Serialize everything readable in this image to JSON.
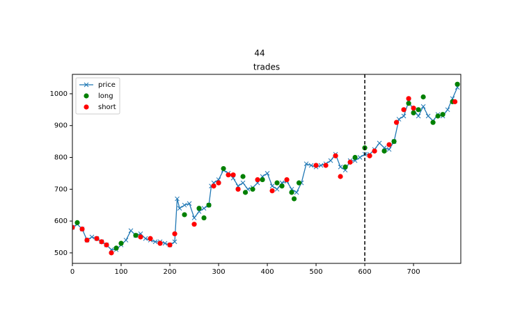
{
  "chart_data": {
    "type": "line",
    "suptitle": "44",
    "title": "trades",
    "xlim": [
      0,
      797
    ],
    "ylim": [
      467,
      1061
    ],
    "xticks": [
      0,
      100,
      200,
      300,
      400,
      500,
      600,
      700
    ],
    "yticks": [
      500,
      600,
      700,
      800,
      900,
      1000
    ],
    "vline": 600,
    "legend": "upper left",
    "series": [
      {
        "name": "price",
        "color": "#1f77b4",
        "marker": "x",
        "line": true,
        "x": [
          0,
          10,
          20,
          30,
          40,
          50,
          60,
          70,
          80,
          90,
          100,
          110,
          120,
          130,
          140,
          150,
          160,
          170,
          180,
          190,
          200,
          210,
          215,
          220,
          230,
          240,
          250,
          260,
          270,
          280,
          285,
          290,
          300,
          310,
          320,
          330,
          340,
          350,
          360,
          370,
          380,
          390,
          400,
          410,
          420,
          430,
          440,
          450,
          460,
          470,
          480,
          490,
          500,
          510,
          520,
          530,
          540,
          550,
          560,
          570,
          580,
          590,
          600,
          610,
          620,
          630,
          640,
          650,
          660,
          670,
          680,
          690,
          700,
          710,
          720,
          730,
          740,
          750,
          760,
          770,
          780,
          790
        ],
        "values": [
          580,
          590,
          575,
          540,
          550,
          545,
          535,
          525,
          510,
          510,
          525,
          540,
          570,
          555,
          560,
          545,
          540,
          535,
          535,
          530,
          525,
          535,
          670,
          640,
          650,
          655,
          610,
          630,
          640,
          650,
          710,
          720,
          730,
          760,
          750,
          735,
          710,
          720,
          700,
          705,
          720,
          740,
          750,
          710,
          700,
          720,
          725,
          700,
          690,
          720,
          780,
          775,
          770,
          775,
          780,
          790,
          810,
          770,
          760,
          790,
          790,
          800,
          810,
          810,
          825,
          845,
          830,
          825,
          850,
          920,
          930,
          975,
          950,
          930,
          960,
          930,
          915,
          935,
          930,
          950,
          985,
          1020
        ]
      },
      {
        "name": "long",
        "color": "#008000",
        "marker": "o",
        "line": false,
        "x": [
          10,
          90,
          100,
          130,
          230,
          260,
          270,
          280,
          310,
          350,
          355,
          370,
          390,
          420,
          430,
          450,
          455,
          465,
          560,
          580,
          600,
          640,
          660,
          690,
          700,
          710,
          720,
          740,
          750,
          760,
          780,
          790
        ],
        "values": [
          595,
          515,
          530,
          555,
          620,
          640,
          610,
          650,
          765,
          740,
          690,
          700,
          730,
          720,
          710,
          690,
          670,
          720,
          770,
          800,
          830,
          820,
          850,
          970,
          940,
          950,
          990,
          910,
          930,
          935,
          975,
          1030
        ]
      },
      {
        "name": "short",
        "color": "#ff0000",
        "marker": "o",
        "line": false,
        "x": [
          0,
          20,
          30,
          50,
          60,
          70,
          80,
          140,
          160,
          180,
          200,
          210,
          250,
          290,
          300,
          320,
          330,
          340,
          380,
          410,
          440,
          500,
          520,
          540,
          550,
          570,
          610,
          620,
          650,
          665,
          680,
          690,
          700,
          785
        ],
        "values": [
          580,
          575,
          540,
          545,
          535,
          525,
          500,
          550,
          545,
          530,
          525,
          560,
          590,
          710,
          720,
          745,
          745,
          700,
          730,
          695,
          730,
          775,
          775,
          805,
          740,
          785,
          805,
          820,
          840,
          910,
          950,
          985,
          955,
          975
        ]
      }
    ]
  }
}
